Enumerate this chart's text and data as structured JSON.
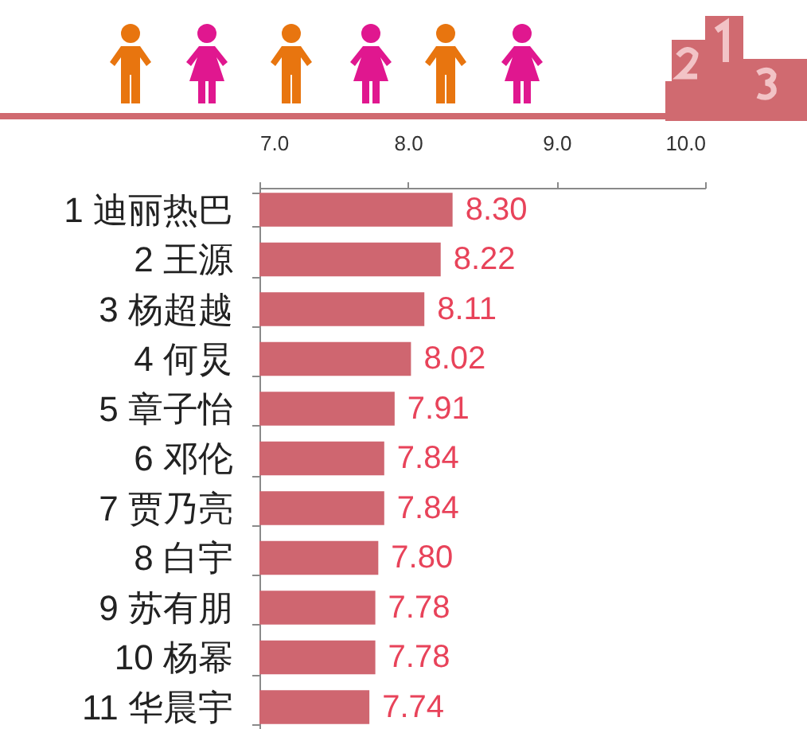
{
  "chart_data": {
    "type": "bar",
    "orientation": "horizontal",
    "categories": [
      "1 迪丽热巴",
      "2 王源",
      "3 杨超越",
      "4 何炅",
      "5 章子怡",
      "6 邓伦",
      "7 贾乃亮",
      "8 白宇",
      "9 苏有朋",
      "10 杨幂",
      "11 华晨宇"
    ],
    "values": [
      8.3,
      8.22,
      8.11,
      8.02,
      7.91,
      7.84,
      7.84,
      7.8,
      7.78,
      7.78,
      7.74
    ],
    "value_labels": [
      "8.30",
      "8.22",
      "8.11",
      "8.02",
      "7.91",
      "7.84",
      "7.84",
      "7.80",
      "7.78",
      "7.78",
      "7.74"
    ],
    "color": "#cf6670",
    "xlim": [
      7,
      10
    ],
    "xticks": [
      {
        "value": 7,
        "label": "7.0"
      },
      {
        "value": 8,
        "label": "8.0"
      },
      {
        "value": 9,
        "label": "9.0"
      },
      {
        "value": 10,
        "label": "10.0"
      }
    ]
  }
}
